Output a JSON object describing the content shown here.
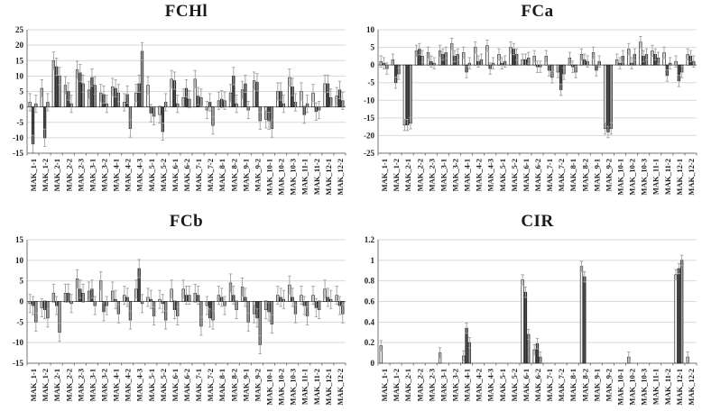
{
  "figure_title": "Four-panel grouped bar chart figure",
  "styles": {
    "background": "#ffffff",
    "bar_fills": [
      "#ffffff",
      "#4a4a4a",
      "#9e9e9e"
    ],
    "bar_border": "#1f1f1f",
    "error_color": "#a0a0a0",
    "grid_color": "#d9d9d9",
    "zero_line_color": "#737373",
    "axis_color": "#737373",
    "text_color": "#1a1a1a"
  },
  "categories": [
    "MAK_1-1",
    "MAK_1-2",
    "MAK_2-1",
    "MAK_2-2",
    "MAK_2-3",
    "MAK_3-1",
    "MAK_3-2",
    "MAK_4-1",
    "MAK_4-2",
    "MAK_4-3",
    "MAK_5-1",
    "MAK_5-2",
    "MAK_6-1",
    "MAK_6-2",
    "MAK_7-1",
    "MAK_7-2",
    "MAK_8-1",
    "MAK_8-2",
    "MAK_9-1",
    "MAK_9-2",
    "MAK_10-1",
    "MAK_10-2",
    "MAK_10-3",
    "MAK_11-1",
    "MAK_11-2",
    "MAK_12-1",
    "MAK_12-2"
  ],
  "chart_data": [
    {
      "type": "bar",
      "title": "FCHl",
      "xlabel": "",
      "ylabel": "",
      "ylim": [
        -15,
        25
      ],
      "yticks": [
        25,
        20,
        15,
        10,
        5,
        0,
        -5,
        -10,
        -15
      ],
      "grid": true,
      "legend": "none",
      "error_bar_approx": 2.8,
      "err_up_only": false,
      "err_skip_zero": false,
      "series": [
        {
          "name": "s1",
          "values": [
            1.5,
            6,
            15,
            7,
            12,
            5.5,
            4.5,
            6.5,
            1.5,
            4.5,
            7,
            -2.5,
            9,
            3,
            9,
            -1,
            2,
            4.5,
            5.5,
            8.5,
            -4,
            5,
            9.5,
            5,
            4.5,
            7.5,
            3.5
          ]
        },
        {
          "name": "s2",
          "values": [
            -12,
            -10,
            13,
            5,
            11,
            9.5,
            4,
            6,
            4,
            7.5,
            -2,
            -8,
            8.5,
            6,
            3.5,
            1.5,
            2.5,
            10,
            7.5,
            8,
            -4.5,
            5,
            6.5,
            -2.5,
            -1.5,
            7.5,
            5.5
          ]
        },
        {
          "name": "s3",
          "values": [
            1,
            1.5,
            10,
            1,
            7.5,
            7,
            1,
            4.5,
            -7,
            18,
            -3,
            1.5,
            1,
            2.5,
            3,
            -6,
            2,
            1,
            -1,
            -4.5,
            -7,
            1,
            1.5,
            1,
            -1,
            3,
            2
          ]
        }
      ]
    },
    {
      "type": "bar",
      "title": "FCa",
      "xlabel": "",
      "ylabel": "",
      "ylim": [
        -25,
        10
      ],
      "yticks": [
        10,
        5,
        0,
        -5,
        -10,
        -15,
        -20,
        -25
      ],
      "grid": true,
      "legend": "none",
      "error_bar_approx": 1.6,
      "err_up_only": false,
      "err_skip_zero": false,
      "series": [
        {
          "name": "s1",
          "values": [
            1,
            1.5,
            -17,
            4,
            3.5,
            4,
            6,
            3.5,
            5,
            5.5,
            3,
            5,
            1.5,
            2.5,
            2.5,
            -2,
            2,
            3,
            3.5,
            -18,
            1.5,
            4.5,
            6.5,
            4,
            3.5,
            1,
            3
          ]
        },
        {
          "name": "s2",
          "values": [
            0.5,
            -5,
            -17,
            4.5,
            1,
            3,
            2.5,
            -2,
            1,
            -1,
            0.5,
            4.5,
            1.5,
            -0.5,
            -1.5,
            -7,
            -0.5,
            1.5,
            -1.5,
            -19,
            0.5,
            0.5,
            2.5,
            3,
            -3,
            -4.5,
            2.5
          ]
        },
        {
          "name": "s3",
          "values": [
            -1,
            -2.5,
            -16.5,
            2.5,
            0.5,
            3.5,
            3,
            0.5,
            1.5,
            0.5,
            1,
            3,
            2,
            -0.5,
            -3.5,
            -2.5,
            -2,
            1,
            1,
            -18,
            2.5,
            3,
            3,
            2,
            0.5,
            -2,
            1
          ]
        }
      ]
    },
    {
      "type": "bar",
      "title": "FCb",
      "xlabel": "",
      "ylabel": "",
      "ylim": [
        -15,
        15
      ],
      "yticks": [
        15,
        10,
        5,
        0,
        -5,
        -10,
        -15
      ],
      "grid": true,
      "legend": "none",
      "error_bar_approx": 2.2,
      "err_up_only": false,
      "err_skip_zero": false,
      "series": [
        {
          "name": "s1",
          "values": [
            -0.5,
            -1.5,
            2,
            2,
            5.5,
            2.5,
            5,
            2.5,
            1.5,
            3,
            1,
            0.5,
            3,
            3,
            2,
            -1,
            1.5,
            4.5,
            3.5,
            -3,
            -2,
            1.5,
            4,
            1.5,
            1.5,
            3,
            1.5
          ]
        },
        {
          "name": "s2",
          "values": [
            -1,
            -2,
            -1,
            2,
            3,
            3,
            -2.5,
            0.5,
            1,
            8,
            0.5,
            -0.5,
            -2,
            1.5,
            1.5,
            -4,
            1,
            1.5,
            1,
            -4,
            -2.5,
            1,
            1,
            -1,
            -1.5,
            1,
            -1
          ]
        },
        {
          "name": "s3",
          "values": [
            -5,
            -4,
            -7.5,
            -0.5,
            2,
            -1,
            -1,
            -3,
            -4.5,
            -0.5,
            -3.5,
            -4.5,
            -3.5,
            1.5,
            -6,
            -4.5,
            -1,
            -2,
            -5,
            -10.5,
            -5.5,
            0.5,
            -3,
            -3.5,
            -2,
            0.5,
            -3
          ]
        }
      ]
    },
    {
      "type": "bar",
      "title": "CIR",
      "xlabel": "",
      "ylabel": "",
      "ylim": [
        0,
        1.2
      ],
      "yticks": [
        1.2,
        1,
        0.8,
        0.6,
        0.4,
        0.2,
        0
      ],
      "grid": true,
      "legend": "none",
      "error_bar_approx": 0.05,
      "err_up_only": true,
      "err_skip_zero": true,
      "series": [
        {
          "name": "s1",
          "values": [
            0.17,
            0,
            0,
            0,
            0,
            0.1,
            0,
            0.07,
            0,
            0,
            0,
            0,
            0.81,
            0.13,
            0,
            0,
            0,
            0.94,
            0,
            0,
            0,
            0.06,
            0,
            0,
            0,
            0.86,
            0.06
          ]
        },
        {
          "name": "s2",
          "values": [
            0,
            0,
            0,
            0,
            0,
            0,
            0,
            0.34,
            0,
            0,
            0,
            0,
            0.69,
            0.19,
            0,
            0,
            0,
            0.84,
            0,
            0,
            0,
            0,
            0,
            0,
            0,
            0.92,
            0
          ]
        },
        {
          "name": "s3",
          "values": [
            0,
            0,
            0,
            0,
            0,
            0,
            0,
            0.2,
            0,
            0,
            0,
            0,
            0.28,
            0.06,
            0,
            0,
            0,
            0,
            0,
            0,
            0,
            0,
            0,
            0,
            0,
            1.0,
            0
          ]
        }
      ]
    }
  ]
}
